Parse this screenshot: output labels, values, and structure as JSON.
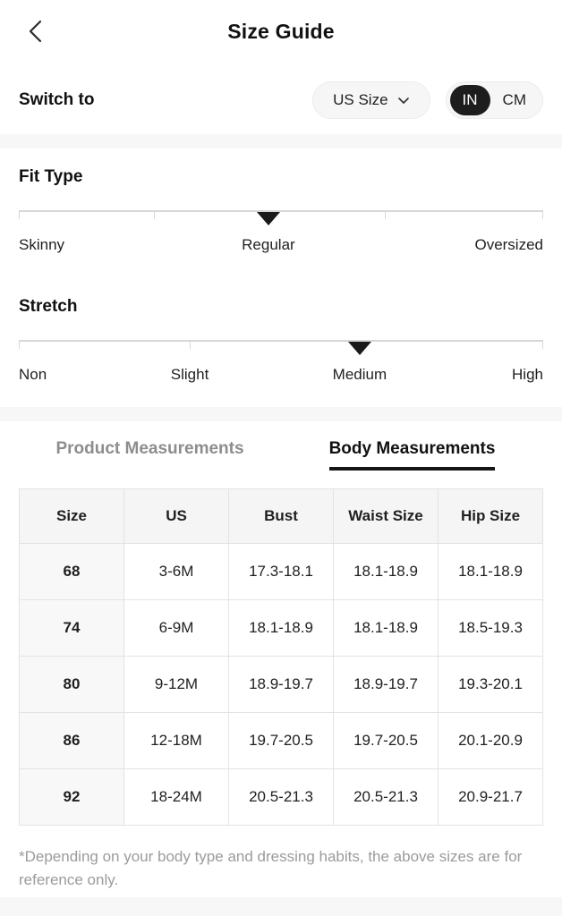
{
  "header": {
    "title": "Size Guide"
  },
  "switch_to": {
    "label": "Switch to",
    "size_system": {
      "value": "US Size"
    },
    "units": {
      "options": [
        "IN",
        "CM"
      ],
      "selected": "IN"
    }
  },
  "scales": [
    {
      "heading": "Fit Type",
      "selected": "Regular",
      "marker_pct": 47.6,
      "ticks_pct": [
        25.8,
        69.8
      ],
      "labels": [
        {
          "text": "Skinny",
          "align": "left",
          "pct": 0
        },
        {
          "text": "Regular",
          "align": "center",
          "pct": 47.6
        },
        {
          "text": "Oversized",
          "align": "right",
          "pct": 100
        }
      ]
    },
    {
      "heading": "Stretch",
      "selected": "Medium",
      "marker_pct": 65,
      "ticks_pct": [
        32.6
      ],
      "labels": [
        {
          "text": "Non",
          "align": "left",
          "pct": 0
        },
        {
          "text": "Slight",
          "align": "center",
          "pct": 32.6
        },
        {
          "text": "Medium",
          "align": "center",
          "pct": 65
        },
        {
          "text": "High",
          "align": "right",
          "pct": 100
        }
      ]
    }
  ],
  "tabs": [
    {
      "label": "Product Measurements",
      "active": false
    },
    {
      "label": "Body Measurements",
      "active": true
    }
  ],
  "table": {
    "columns": [
      "Size",
      "US",
      "Bust",
      "Waist Size",
      "Hip Size"
    ],
    "rows": [
      [
        "68",
        "3-6M",
        "17.3-18.1",
        "18.1-18.9",
        "18.1-18.9"
      ],
      [
        "74",
        "6-9M",
        "18.1-18.9",
        "18.1-18.9",
        "18.5-19.3"
      ],
      [
        "80",
        "9-12M",
        "18.9-19.7",
        "18.9-19.7",
        "19.3-20.1"
      ],
      [
        "86",
        "12-18M",
        "19.7-20.5",
        "19.7-20.5",
        "20.1-20.9"
      ],
      [
        "92",
        "18-24M",
        "20.5-21.3",
        "20.5-21.3",
        "20.9-21.7"
      ]
    ]
  },
  "footnote": "*Depending on your body type and dressing habits, the above sizes are for reference only.",
  "icons": {
    "back": "chevron-left",
    "dropdown": "chevron-down"
  },
  "colors": {
    "active_unit_bg": "#1d1d1d",
    "active_unit_text": "#ffffff",
    "pill_bg": "#f6f6f6",
    "separator_band": "#f7f7f7",
    "table_border": "#e3e3e3",
    "table_header_bg": "#f5f5f6",
    "inactive_tab_text": "#8d8d8d",
    "footnote_text": "#9b9b9b",
    "marker": "#1a1a1a",
    "scale_line": "#d7d7d7"
  }
}
